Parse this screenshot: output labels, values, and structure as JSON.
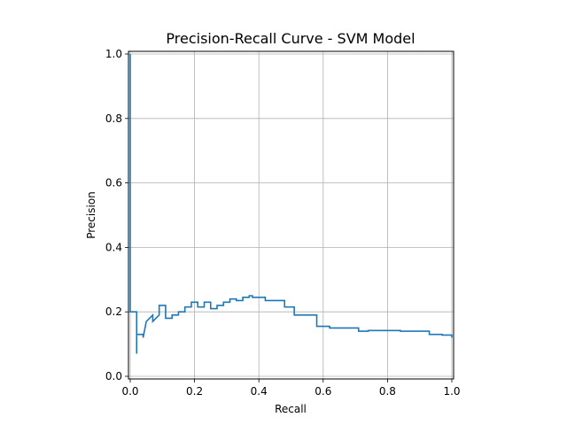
{
  "chart_data": {
    "type": "line",
    "title": "Precision-Recall Curve - SVM Model",
    "xlabel": "Recall",
    "ylabel": "Precision",
    "xlim": [
      0.0,
      1.0
    ],
    "ylim": [
      0.0,
      1.0
    ],
    "xticks": [
      "0.0",
      "0.2",
      "0.4",
      "0.6",
      "0.8",
      "1.0"
    ],
    "yticks": [
      "0.0",
      "0.2",
      "0.4",
      "0.6",
      "0.8",
      "1.0"
    ],
    "grid": true,
    "legend": "none",
    "step": "post",
    "color": "#1f77b4",
    "series": [
      {
        "x": [
          0.0,
          0.0,
          0.02,
          0.02,
          0.02,
          0.02,
          0.04,
          0.04,
          0.05,
          0.05,
          0.07,
          0.07,
          0.09,
          0.09,
          0.09,
          0.11,
          0.11,
          0.13,
          0.13,
          0.15,
          0.15,
          0.17,
          0.17,
          0.19,
          0.19,
          0.21,
          0.21,
          0.23,
          0.23,
          0.25,
          0.25,
          0.27,
          0.27,
          0.29,
          0.29,
          0.31,
          0.31,
          0.33,
          0.33,
          0.35,
          0.35,
          0.37,
          0.37,
          0.38,
          0.38,
          0.42,
          0.42,
          0.46,
          0.46,
          0.48,
          0.48,
          0.51,
          0.51,
          0.53,
          0.53,
          0.58,
          0.58,
          0.62,
          0.62,
          0.64,
          0.64,
          0.71,
          0.71,
          0.74,
          0.74,
          0.76,
          0.76,
          0.84,
          0.84,
          0.93,
          0.93,
          0.97,
          0.97,
          1.0,
          1.0
        ],
        "y": [
          1.0,
          0.2,
          0.2,
          0.07,
          0.2,
          0.13,
          0.13,
          0.12,
          0.17,
          0.17,
          0.19,
          0.17,
          0.19,
          0.22,
          0.22,
          0.22,
          0.18,
          0.18,
          0.19,
          0.19,
          0.2,
          0.2,
          0.215,
          0.215,
          0.23,
          0.23,
          0.215,
          0.215,
          0.23,
          0.23,
          0.21,
          0.21,
          0.22,
          0.22,
          0.23,
          0.23,
          0.24,
          0.24,
          0.235,
          0.235,
          0.245,
          0.245,
          0.25,
          0.25,
          0.245,
          0.245,
          0.235,
          0.235,
          0.235,
          0.235,
          0.215,
          0.215,
          0.19,
          0.19,
          0.19,
          0.19,
          0.155,
          0.155,
          0.15,
          0.15,
          0.15,
          0.15,
          0.14,
          0.14,
          0.142,
          0.142,
          0.142,
          0.142,
          0.14,
          0.14,
          0.13,
          0.13,
          0.128,
          0.128,
          0.12
        ]
      }
    ]
  }
}
